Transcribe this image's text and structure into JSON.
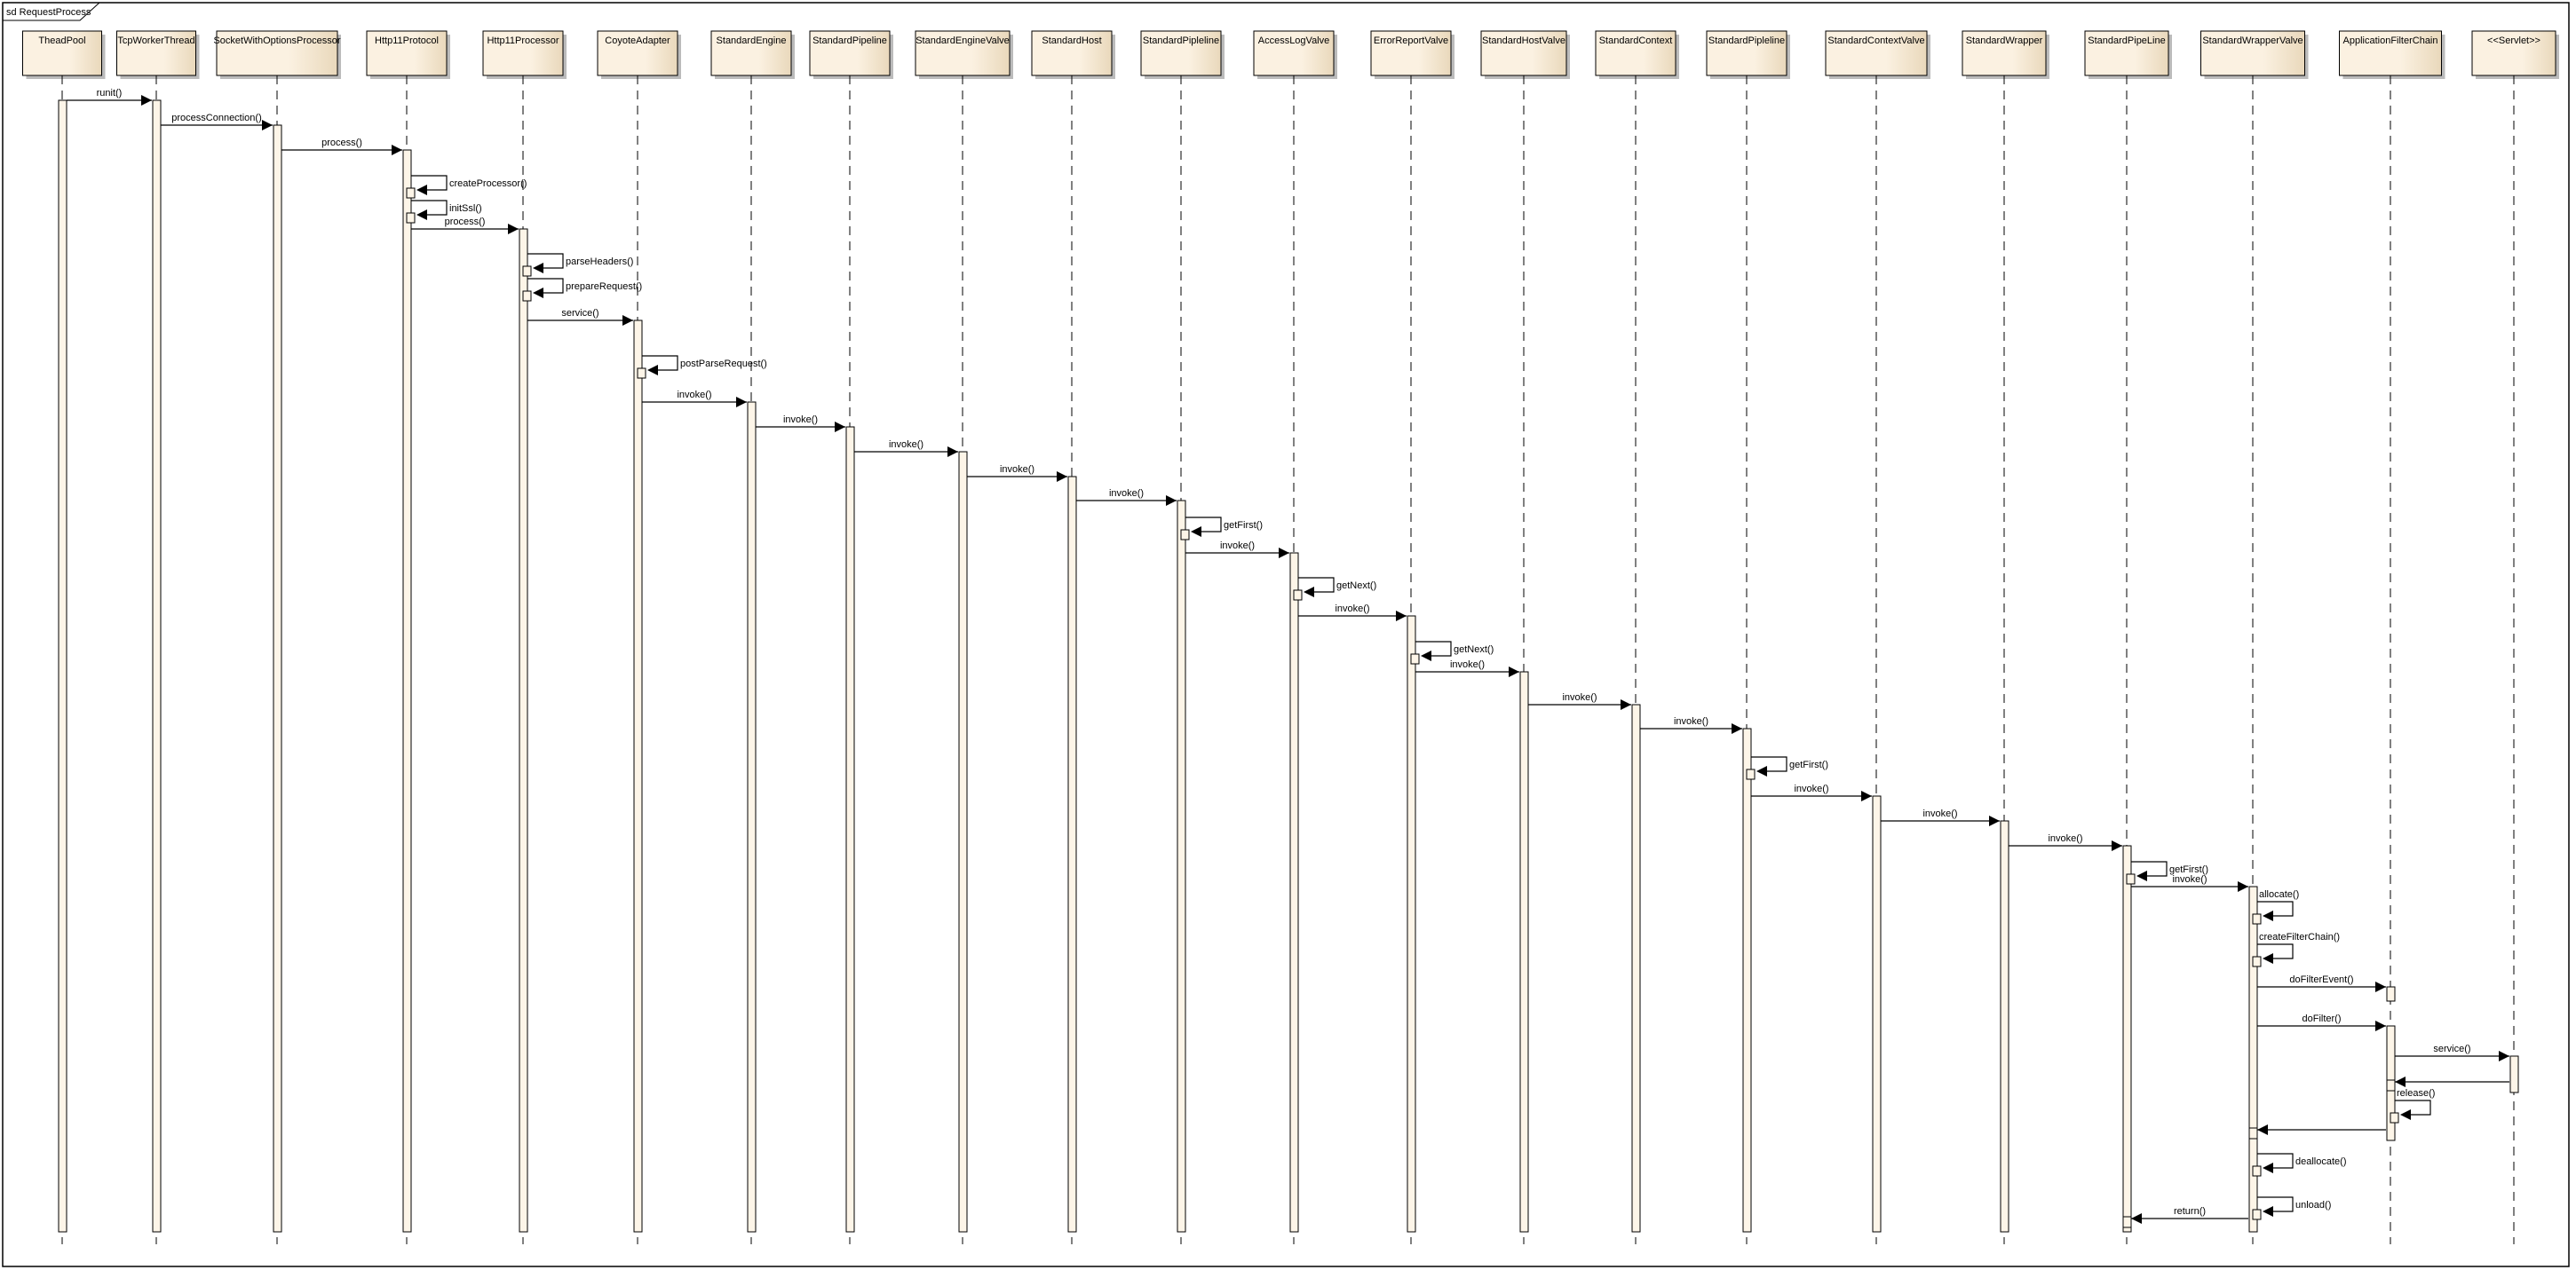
{
  "frame": {
    "title": "sd RequestProcess"
  },
  "participants": [
    "TheadPool",
    "TcpWorkerThread",
    "SocketWithOptionsProcessor",
    "Http11Protocol",
    "Http11Processor",
    "CoyoteAdapter",
    "StandardEngine",
    "StandardPipeline",
    "StandardEngineValve",
    "StandardHost",
    "StandardPipleline",
    "AccessLogValve",
    "ErrorReportValve",
    "StandardHostValve",
    "StandardContext",
    "StandardPipleline",
    "StandardContextValve",
    "StandardWrapper",
    "StandardPipeLine",
    "StandardWrapperValve",
    "ApplicationFilterChain",
    "<<Servlet>>"
  ],
  "messages": [
    {
      "label": "runit()",
      "from": 0,
      "to": 1
    },
    {
      "label": "processConnection()",
      "from": 1,
      "to": 2
    },
    {
      "label": "process()",
      "from": 2,
      "to": 3
    },
    {
      "label": "createProcessor()",
      "from": 3,
      "to": 3
    },
    {
      "label": "initSsl()",
      "from": 3,
      "to": 3
    },
    {
      "label": "process()",
      "from": 3,
      "to": 4
    },
    {
      "label": "parseHeaders()",
      "from": 4,
      "to": 4
    },
    {
      "label": "prepareRequest()",
      "from": 4,
      "to": 4
    },
    {
      "label": "service()",
      "from": 4,
      "to": 5
    },
    {
      "label": "postParseRequest()",
      "from": 5,
      "to": 5
    },
    {
      "label": "invoke()",
      "from": 5,
      "to": 6
    },
    {
      "label": "invoke()",
      "from": 6,
      "to": 7
    },
    {
      "label": "invoke()",
      "from": 7,
      "to": 8
    },
    {
      "label": "invoke()",
      "from": 8,
      "to": 9
    },
    {
      "label": "invoke()",
      "from": 9,
      "to": 10
    },
    {
      "label": "getFirst()",
      "from": 10,
      "to": 10
    },
    {
      "label": "invoke()",
      "from": 10,
      "to": 11
    },
    {
      "label": "getNext()",
      "from": 11,
      "to": 11
    },
    {
      "label": "invoke()",
      "from": 11,
      "to": 12
    },
    {
      "label": "getNext()",
      "from": 12,
      "to": 12
    },
    {
      "label": "invoke()",
      "from": 12,
      "to": 13
    },
    {
      "label": "invoke()",
      "from": 13,
      "to": 14
    },
    {
      "label": "invoke()",
      "from": 14,
      "to": 15
    },
    {
      "label": "getFirst()",
      "from": 15,
      "to": 15
    },
    {
      "label": "invoke()",
      "from": 15,
      "to": 16
    },
    {
      "label": "invoke()",
      "from": 16,
      "to": 17
    },
    {
      "label": "invoke()",
      "from": 17,
      "to": 18
    },
    {
      "label": "getFirst()",
      "from": 18,
      "to": 18
    },
    {
      "label": "invoke()",
      "from": 18,
      "to": 19
    },
    {
      "label": "allocate()",
      "from": 19,
      "to": 19
    },
    {
      "label": "createFilterChain()",
      "from": 19,
      "to": 19
    },
    {
      "label": "doFilterEvent()",
      "from": 19,
      "to": 20
    },
    {
      "label": "doFilter()",
      "from": 19,
      "to": 20
    },
    {
      "label": "service()",
      "from": 20,
      "to": 21
    },
    {
      "label": "",
      "from": 21,
      "to": 20
    },
    {
      "label": "release()",
      "from": 20,
      "to": 20
    },
    {
      "label": "",
      "from": 20,
      "to": 19
    },
    {
      "label": "deallocate()",
      "from": 19,
      "to": 19
    },
    {
      "label": "unload()",
      "from": 19,
      "to": 19
    },
    {
      "label": "return()",
      "from": 19,
      "to": 18
    }
  ],
  "colors": {
    "box_fill": "#fbf1e1",
    "box_shade": "#ead9bd",
    "activation": "#fdf5e8",
    "line": "#000000"
  }
}
